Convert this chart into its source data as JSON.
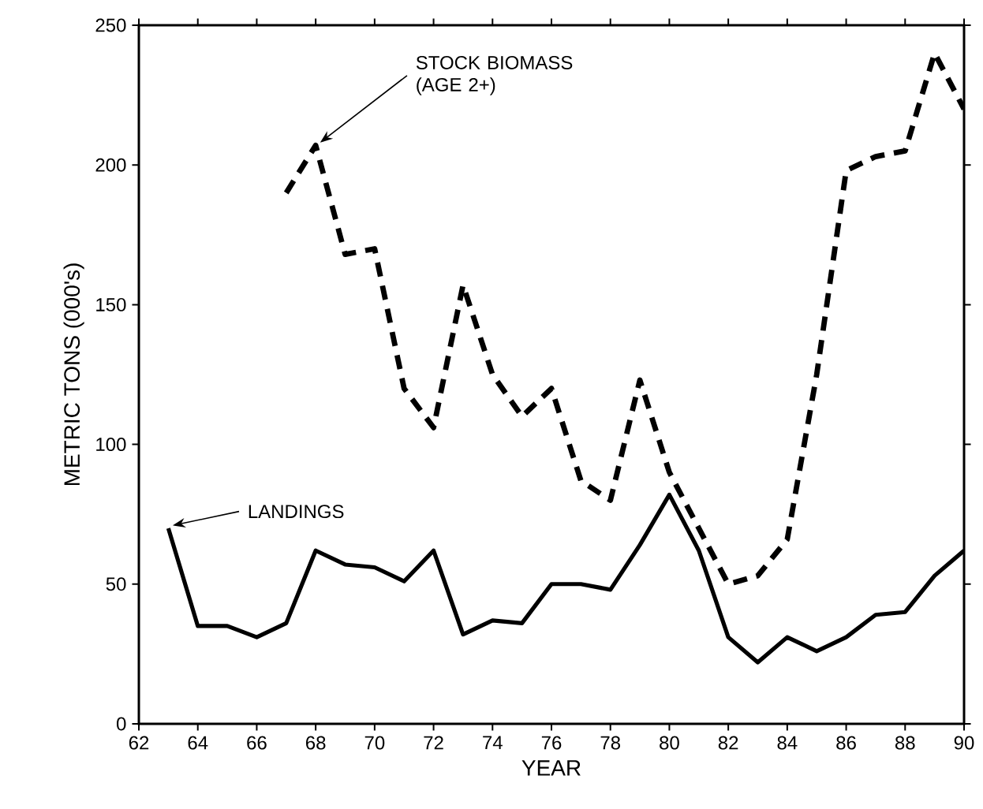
{
  "chart_data": {
    "type": "line",
    "xlabel": "YEAR",
    "ylabel": "METRIC TONS (000's)",
    "xlim": [
      62,
      90
    ],
    "ylim": [
      0,
      250
    ],
    "xticks": [
      62,
      64,
      66,
      68,
      70,
      72,
      74,
      76,
      78,
      80,
      82,
      84,
      86,
      88,
      90
    ],
    "yticks": [
      0,
      50,
      100,
      150,
      200,
      250
    ],
    "grid": false,
    "series": [
      {
        "color": "#000000",
        "line_style": "solid",
        "x": [
          63,
          64,
          65,
          66,
          67,
          68,
          69,
          70,
          71,
          72,
          73,
          74,
          75,
          76,
          77,
          78,
          79,
          80,
          81,
          82,
          83,
          84,
          85,
          86,
          87,
          88,
          89,
          90
        ],
        "values": [
          70,
          35,
          35,
          31,
          36,
          62,
          57,
          56,
          51,
          62,
          32,
          37,
          36,
          50,
          50,
          48,
          64,
          82,
          62,
          31,
          22,
          31,
          26,
          31,
          39,
          40,
          53,
          62
        ]
      },
      {
        "color": "#000000",
        "line_style": "dashed",
        "x": [
          67,
          68,
          69,
          70,
          71,
          72,
          73,
          74,
          75,
          76,
          77,
          78,
          79,
          80,
          81,
          82,
          83,
          84,
          85,
          86,
          87,
          88,
          89,
          90
        ],
        "values": [
          190,
          207,
          168,
          170,
          120,
          106,
          157,
          125,
          110,
          120,
          87,
          80,
          123,
          90,
          70,
          50,
          53,
          66,
          125,
          198,
          203,
          205,
          240,
          220
        ]
      }
    ],
    "annotations": [
      {
        "text": "STOCK BIOMASS (AGE 2+)",
        "x": 68,
        "y": 207
      },
      {
        "text": "LANDINGS",
        "x": 63,
        "y": 70
      }
    ]
  }
}
